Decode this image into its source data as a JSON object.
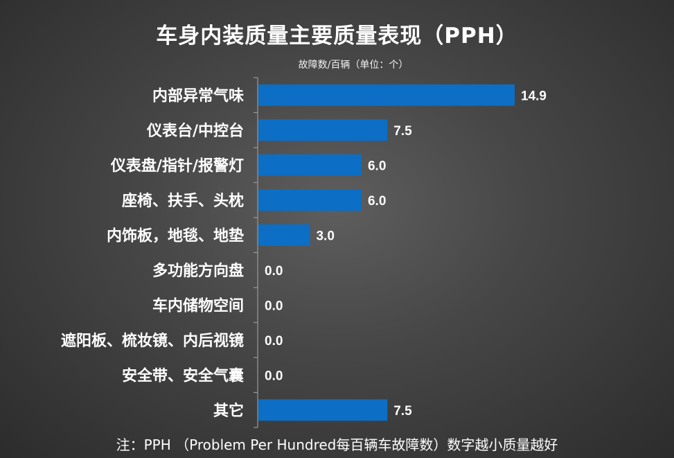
{
  "chart_data": {
    "type": "bar",
    "orientation": "horizontal",
    "title": "车身内装质量主要质量表现（PPH）",
    "subtitle": "故障数/百辆（单位：个）",
    "note": "注：PPH （Problem Per Hundred每百辆车故障数）数字越小质量越好",
    "categories": [
      "内部异常气味",
      "仪表台/中控台",
      "仪表盘/指针/报警灯",
      "座椅、扶手、头枕",
      "内饰板，地毯、地垫",
      "多功能方向盘",
      "车内储物空间",
      "遮阳板、梳妆镜、内后视镜",
      "安全带、安全气囊",
      "其它"
    ],
    "values": [
      14.9,
      7.5,
      6.0,
      6.0,
      3.0,
      0.0,
      0.0,
      0.0,
      0.0,
      7.5
    ],
    "value_labels": [
      "14.9",
      "7.5",
      "6.0",
      "6.0",
      "3.0",
      "0.0",
      "0.0",
      "0.0",
      "0.0",
      "7.5"
    ],
    "bar_color": "#0c6ec4",
    "xlim": [
      0,
      15
    ],
    "grid": false,
    "legend": "none"
  }
}
